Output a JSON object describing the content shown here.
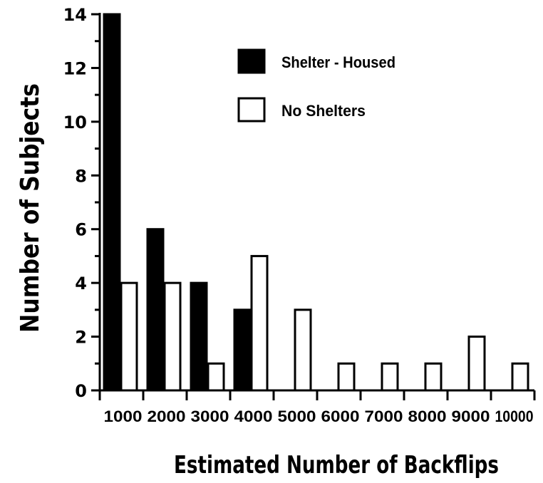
{
  "chart_data": {
    "type": "bar",
    "xlabel": "Estimated  Number of  Backflips",
    "ylabel": "Number of Subjects",
    "categories": [
      "1000",
      "2000",
      "3000",
      "4000",
      "5000",
      "6000",
      "7000",
      "8000",
      "9000",
      "10000"
    ],
    "series": [
      {
        "name": "Shelter - Housed",
        "values": [
          14,
          6,
          4,
          3,
          0,
          0,
          0,
          0,
          0,
          0
        ],
        "color": "#000000"
      },
      {
        "name": "No Shelters",
        "values": [
          4,
          4,
          1,
          5,
          3,
          1,
          1,
          1,
          2,
          1
        ],
        "color": "#ffffff"
      }
    ],
    "ylim": [
      0,
      14
    ],
    "yticks": [
      0,
      2,
      4,
      6,
      8,
      10,
      12,
      14
    ],
    "legend_position": "top-right",
    "grid": false
  }
}
